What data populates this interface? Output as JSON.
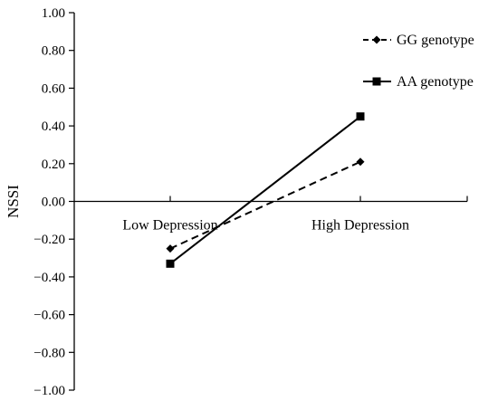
{
  "chart_data": {
    "type": "line",
    "title": "",
    "xlabel": "",
    "ylabel": "NSSI",
    "categories": [
      "Low Depression",
      "High Depression"
    ],
    "ylim": [
      -1.0,
      1.0
    ],
    "yticks": [
      "1.00",
      "0.80",
      "0.60",
      "0.40",
      "0.20",
      "0.00",
      "−0.20",
      "−0.40",
      "−0.60",
      "−0.80",
      "−1.00"
    ],
    "ytick_values": [
      1.0,
      0.8,
      0.6,
      0.4,
      0.2,
      0.0,
      -0.2,
      -0.4,
      -0.6,
      -0.8,
      -1.0
    ],
    "grid": false,
    "legend_position": "top-right",
    "series": [
      {
        "name": "GG genotype",
        "values": [
          -0.25,
          0.21
        ],
        "line_style": "dashed",
        "marker": "diamond",
        "color": "#000000"
      },
      {
        "name": "AA genotype",
        "values": [
          -0.33,
          0.45
        ],
        "line_style": "solid",
        "marker": "square",
        "color": "#000000"
      }
    ]
  }
}
